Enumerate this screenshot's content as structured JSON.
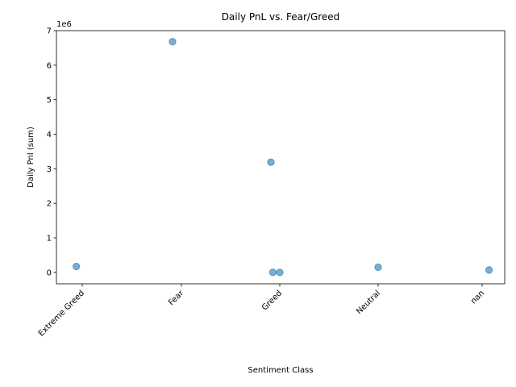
{
  "chart_data": {
    "type": "scatter",
    "title": "Daily PnL vs. Fear/Greed",
    "xlabel": "Sentiment Class",
    "ylabel": "Daily Pnl (sum)",
    "y_scale_label": "1e6",
    "categories": [
      "Extreme Greed",
      "Fear",
      "Greed",
      "Neutral",
      "nan"
    ],
    "ylim": [
      -330000,
      7000000
    ],
    "yticks": [
      0,
      1000000,
      2000000,
      3000000,
      4000000,
      5000000,
      6000000,
      7000000
    ],
    "ytick_labels": [
      "0",
      "1",
      "2",
      "3",
      "4",
      "5",
      "6",
      "7"
    ],
    "grid": false,
    "legend": "none",
    "marker_color": "#1f77b4",
    "marker_alpha": 0.6,
    "points": [
      {
        "category": "Extreme Greed",
        "jitter": -0.06,
        "y": 170000
      },
      {
        "category": "Fear",
        "jitter": -0.09,
        "y": 6680000
      },
      {
        "category": "Greed",
        "jitter": -0.09,
        "y": 3190000
      },
      {
        "category": "Greed",
        "jitter": -0.07,
        "y": 0
      },
      {
        "category": "Greed",
        "jitter": 0.0,
        "y": 0
      },
      {
        "category": "Neutral",
        "jitter": 0.0,
        "y": 150000
      },
      {
        "category": "nan",
        "jitter": 0.07,
        "y": 70000
      }
    ]
  }
}
